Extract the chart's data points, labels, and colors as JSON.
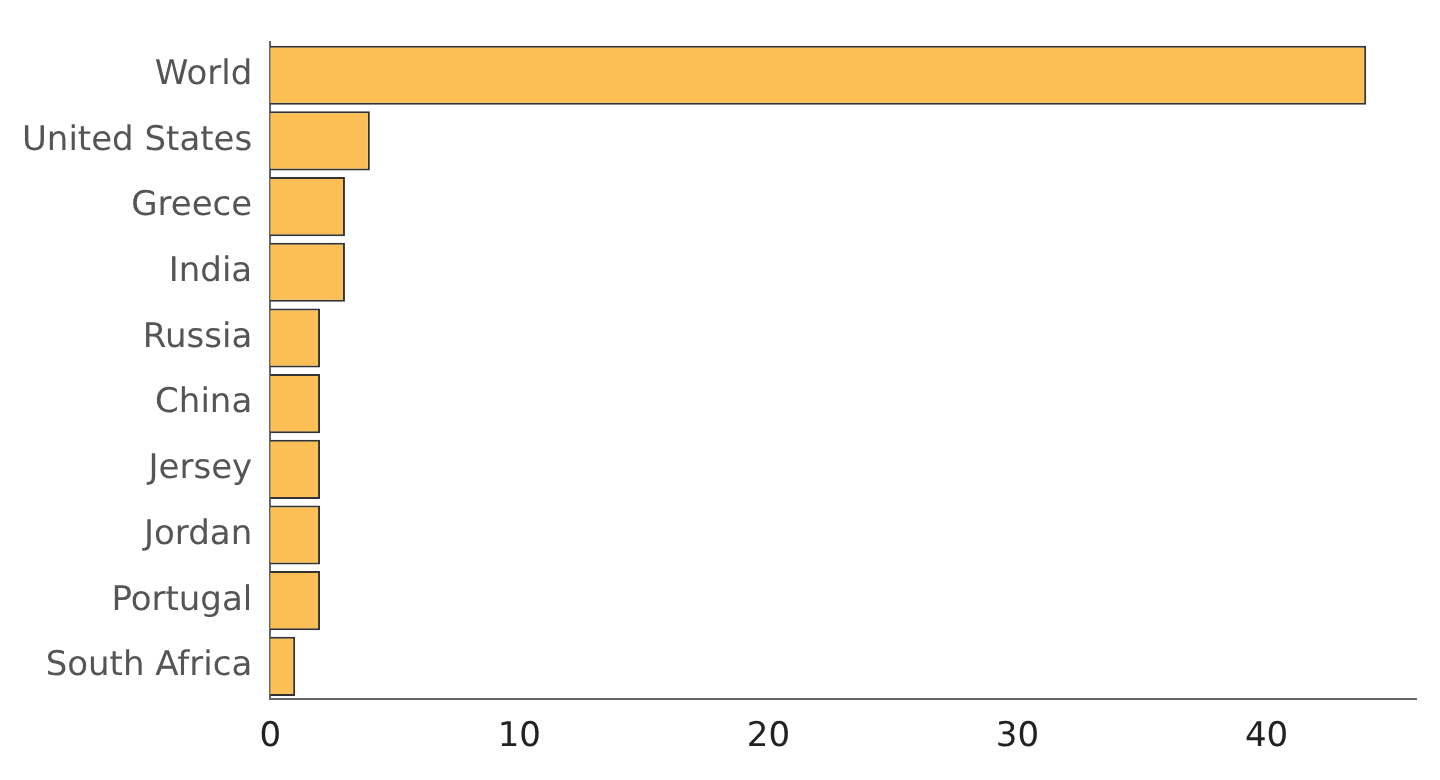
{
  "chart_data": {
    "type": "bar",
    "orientation": "horizontal",
    "categories": [
      "World",
      "United States",
      "Greece",
      "India",
      "Russia",
      "China",
      "Jersey",
      "Jordan",
      "Portugal",
      "South Africa"
    ],
    "values": [
      44,
      4,
      3,
      3,
      2,
      2,
      2,
      2,
      2,
      1
    ],
    "color": "#fcbf55",
    "xlim": [
      0,
      46
    ],
    "xticks": [
      0,
      10,
      20,
      30,
      40
    ],
    "grid": false,
    "legend": false
  }
}
